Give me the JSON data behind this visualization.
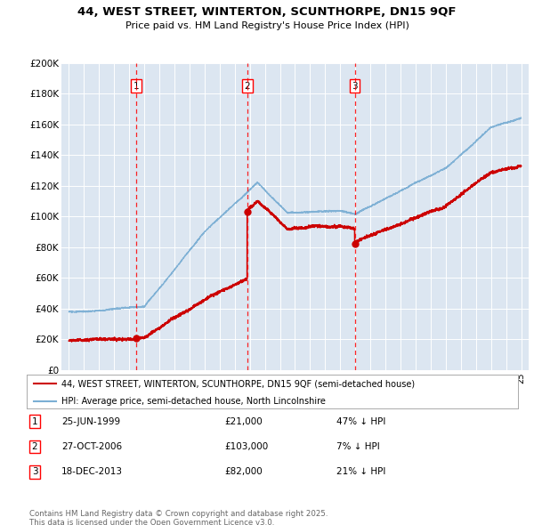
{
  "title_line1": "44, WEST STREET, WINTERTON, SCUNTHORPE, DN15 9QF",
  "title_line2": "Price paid vs. HM Land Registry's House Price Index (HPI)",
  "background_color": "#dce6f1",
  "sale_color": "#cc0000",
  "hpi_color": "#7bafd4",
  "sales": [
    {
      "year": 1999.48,
      "price": 21000,
      "label": "1",
      "date": "25-JUN-1999",
      "price_str": "£21,000",
      "pct": "47% ↓ HPI"
    },
    {
      "year": 2006.82,
      "price": 103000,
      "label": "2",
      "date": "27-OCT-2006",
      "price_str": "£103,000",
      "pct": "7% ↓ HPI"
    },
    {
      "year": 2013.96,
      "price": 82000,
      "label": "3",
      "date": "18-DEC-2013",
      "price_str": "£82,000",
      "pct": "21% ↓ HPI"
    }
  ],
  "ylim": [
    0,
    200000
  ],
  "yticks": [
    0,
    20000,
    40000,
    60000,
    80000,
    100000,
    120000,
    140000,
    160000,
    180000,
    200000
  ],
  "ytick_labels": [
    "£0",
    "£20K",
    "£40K",
    "£60K",
    "£80K",
    "£100K",
    "£120K",
    "£140K",
    "£160K",
    "£180K",
    "£200K"
  ],
  "legend_sale_label": "44, WEST STREET, WINTERTON, SCUNTHORPE, DN15 9QF (semi-detached house)",
  "legend_hpi_label": "HPI: Average price, semi-detached house, North Lincolnshire",
  "footer_line1": "Contains HM Land Registry data © Crown copyright and database right 2025.",
  "footer_line2": "This data is licensed under the Open Government Licence v3.0."
}
